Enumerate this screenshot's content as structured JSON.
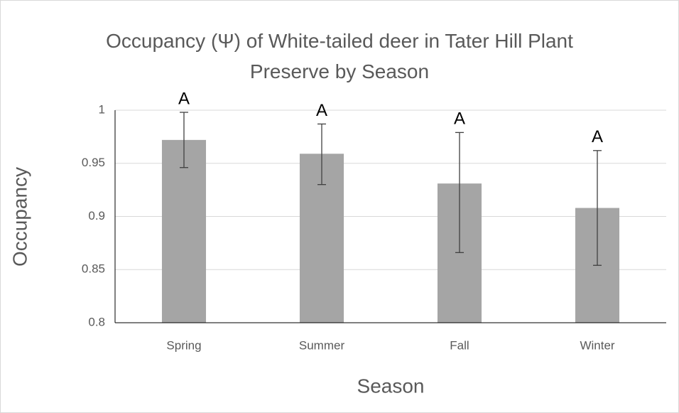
{
  "chart_data": {
    "type": "bar",
    "title": "Occupancy (Ψ) of White-tailed deer in Tater Hill Plant Preserve by Season",
    "x_label": "Season",
    "y_label": "Occupancy",
    "categories": [
      "Spring",
      "Summer",
      "Fall",
      "Winter"
    ],
    "values": [
      0.972,
      0.959,
      0.931,
      0.908
    ],
    "error_high": [
      0.026,
      0.028,
      0.048,
      0.054
    ],
    "error_low": [
      0.026,
      0.029,
      0.065,
      0.054
    ],
    "annotations": [
      "A",
      "A",
      "A",
      "A"
    ],
    "color": "#a5a5a5",
    "ylim": [
      0.8,
      1
    ],
    "yticks": [
      0.8,
      0.85,
      0.9,
      0.95,
      1
    ],
    "grid": true
  }
}
